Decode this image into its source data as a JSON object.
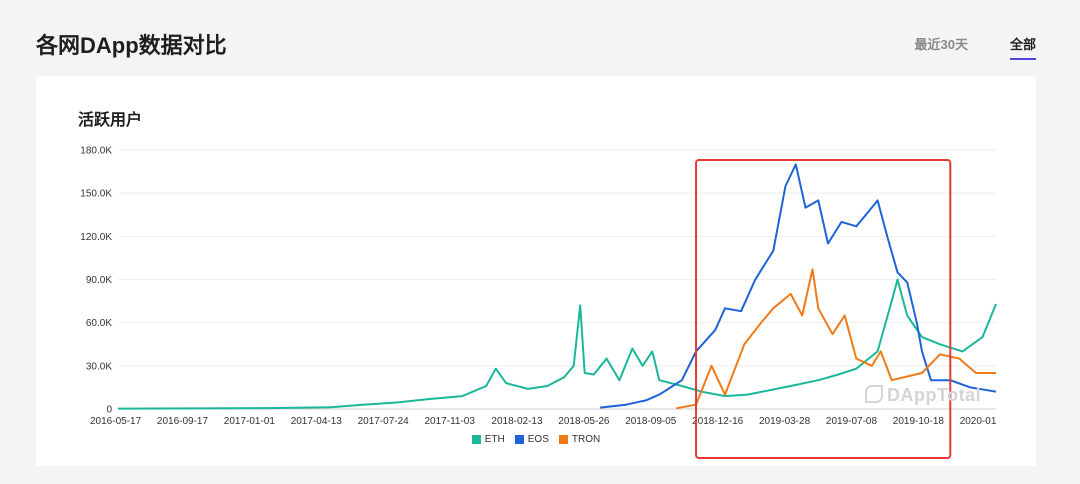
{
  "header": {
    "title": "各网DApp数据对比",
    "tabs": [
      {
        "label": "最近30天",
        "active": false
      },
      {
        "label": "全部",
        "active": true
      }
    ]
  },
  "card": {
    "title": "活跃用户",
    "watermark": "DAppTotal"
  },
  "colors": {
    "eth": "#1ab79a",
    "eos": "#1f63d8",
    "tron": "#f07a17",
    "highlight": "#e53935",
    "tab_underline": "#4b46d8"
  },
  "chart_data": {
    "type": "line",
    "title": "活跃用户",
    "xlabel": "",
    "ylabel": "",
    "ylim": [
      0,
      180000
    ],
    "y_ticks": [
      0,
      30000,
      60000,
      90000,
      120000,
      150000,
      180000
    ],
    "y_tick_labels": [
      "0",
      "30.0K",
      "60.0K",
      "90.0K",
      "120.0K",
      "150.0K",
      "180.0K"
    ],
    "x_tick_labels": [
      "2016-05-17",
      "2016-09-17",
      "2017-01-01",
      "2017-04-13",
      "2017-07-24",
      "2017-11-03",
      "2018-02-13",
      "2018-05-26",
      "2018-09-05",
      "2018-12-16",
      "2019-03-28",
      "2019-07-08",
      "2019-10-18",
      "2020-01"
    ],
    "xlim": [
      "2016-05-17",
      "2020-02-10"
    ],
    "grid": true,
    "legend": "bottom-center",
    "highlight_range": [
      "2018-11-01",
      "2019-12-01"
    ],
    "series": [
      {
        "name": "ETH",
        "color": "#1ab79a",
        "points": [
          [
            "2016-05-17",
            300
          ],
          [
            "2016-09-17",
            400
          ],
          [
            "2017-01-01",
            600
          ],
          [
            "2017-04-13",
            1200
          ],
          [
            "2017-06-01",
            3000
          ],
          [
            "2017-07-24",
            4500
          ],
          [
            "2017-09-15",
            7000
          ],
          [
            "2017-11-03",
            9000
          ],
          [
            "2017-12-10",
            16000
          ],
          [
            "2017-12-25",
            28000
          ],
          [
            "2018-01-10",
            18000
          ],
          [
            "2018-02-13",
            14000
          ],
          [
            "2018-03-15",
            16000
          ],
          [
            "2018-04-10",
            22000
          ],
          [
            "2018-04-25",
            30000
          ],
          [
            "2018-05-05",
            72000
          ],
          [
            "2018-05-12",
            25000
          ],
          [
            "2018-05-26",
            24000
          ],
          [
            "2018-06-15",
            35000
          ],
          [
            "2018-07-05",
            20000
          ],
          [
            "2018-07-25",
            42000
          ],
          [
            "2018-08-10",
            30000
          ],
          [
            "2018-08-25",
            40000
          ],
          [
            "2018-09-05",
            20000
          ],
          [
            "2018-10-10",
            16000
          ],
          [
            "2018-11-10",
            12000
          ],
          [
            "2018-12-16",
            9000
          ],
          [
            "2019-01-20",
            10000
          ],
          [
            "2019-03-28",
            16000
          ],
          [
            "2019-05-10",
            20000
          ],
          [
            "2019-06-10",
            24000
          ],
          [
            "2019-07-08",
            28000
          ],
          [
            "2019-08-10",
            40000
          ],
          [
            "2019-09-01",
            75000
          ],
          [
            "2019-09-10",
            90000
          ],
          [
            "2019-09-25",
            65000
          ],
          [
            "2019-10-18",
            50000
          ],
          [
            "2019-11-15",
            45000
          ],
          [
            "2019-12-20",
            40000
          ],
          [
            "2020-01-20",
            50000
          ],
          [
            "2020-02-10",
            73000
          ]
        ]
      },
      {
        "name": "EOS",
        "color": "#1f63d8",
        "points": [
          [
            "2018-06-05",
            1000
          ],
          [
            "2018-07-15",
            3000
          ],
          [
            "2018-08-15",
            6000
          ],
          [
            "2018-09-05",
            10000
          ],
          [
            "2018-10-10",
            20000
          ],
          [
            "2018-11-01",
            40000
          ],
          [
            "2018-12-01",
            55000
          ],
          [
            "2018-12-16",
            70000
          ],
          [
            "2019-01-10",
            68000
          ],
          [
            "2019-02-01",
            90000
          ],
          [
            "2019-03-01",
            110000
          ],
          [
            "2019-03-20",
            155000
          ],
          [
            "2019-04-05",
            170000
          ],
          [
            "2019-04-20",
            140000
          ],
          [
            "2019-05-10",
            145000
          ],
          [
            "2019-05-25",
            115000
          ],
          [
            "2019-06-15",
            130000
          ],
          [
            "2019-07-08",
            127000
          ],
          [
            "2019-08-01",
            140000
          ],
          [
            "2019-08-10",
            145000
          ],
          [
            "2019-08-25",
            120000
          ],
          [
            "2019-09-10",
            95000
          ],
          [
            "2019-09-25",
            88000
          ],
          [
            "2019-10-10",
            60000
          ],
          [
            "2019-10-18",
            40000
          ],
          [
            "2019-11-01",
            20000
          ],
          [
            "2019-12-01",
            20000
          ],
          [
            "2020-01-01",
            15000
          ],
          [
            "2020-02-10",
            12000
          ]
        ]
      },
      {
        "name": "TRON",
        "color": "#f07a17",
        "points": [
          [
            "2018-10-01",
            500
          ],
          [
            "2018-11-01",
            3000
          ],
          [
            "2018-11-25",
            30000
          ],
          [
            "2018-12-16",
            10000
          ],
          [
            "2019-01-15",
            45000
          ],
          [
            "2019-02-10",
            60000
          ],
          [
            "2019-03-01",
            70000
          ],
          [
            "2019-03-28",
            80000
          ],
          [
            "2019-04-15",
            65000
          ],
          [
            "2019-05-01",
            97000
          ],
          [
            "2019-05-10",
            70000
          ],
          [
            "2019-06-01",
            52000
          ],
          [
            "2019-06-20",
            65000
          ],
          [
            "2019-07-08",
            35000
          ],
          [
            "2019-08-01",
            30000
          ],
          [
            "2019-08-15",
            40000
          ],
          [
            "2019-09-01",
            20000
          ],
          [
            "2019-10-18",
            25000
          ],
          [
            "2019-11-15",
            38000
          ],
          [
            "2019-12-15",
            35000
          ],
          [
            "2020-01-10",
            25000
          ],
          [
            "2020-02-10",
            25000
          ]
        ]
      }
    ]
  }
}
